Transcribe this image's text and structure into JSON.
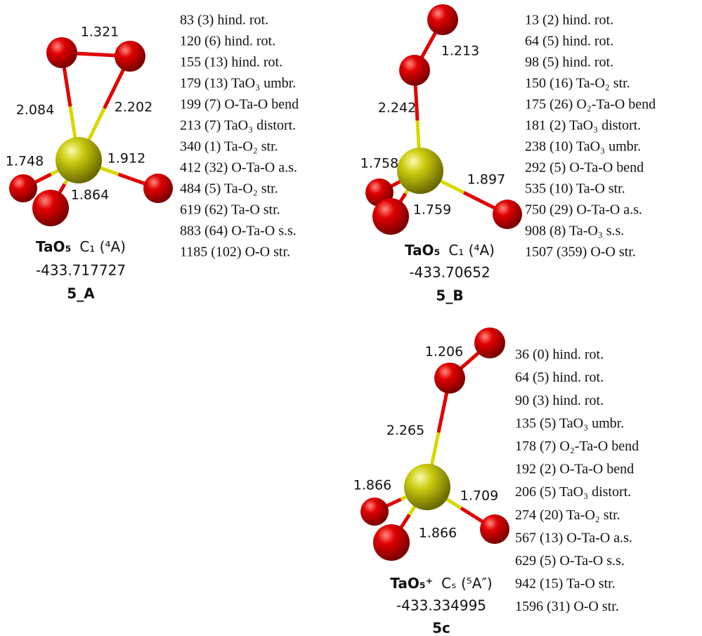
{
  "structures": [
    {
      "id": "5_A",
      "formula": "TaO₅",
      "symmetry": "C₁ (⁴A)",
      "energy": "-433.717727",
      "bonds": [
        "1.321",
        "2.084",
        "2.202",
        "1.748",
        "1.912",
        "1.864"
      ],
      "frequencies": [
        "83 (3) hind. rot.",
        "120 (6) hind. rot.",
        "155 (13) hind. rot.",
        "179 (13) TaO₃ umbr.",
        "199 (7) O-Ta-O bend",
        "213 (7) TaO₃ distort.",
        "340 (1) Ta-O₂ str.",
        "412 (32) O-Ta-O a.s.",
        "484 (5) Ta-O₂ str.",
        "619 (62) Ta-O str.",
        "883 (64) O-Ta-O s.s.",
        "1185 (102) O-O str."
      ]
    },
    {
      "id": "5_B",
      "formula": "TaO₅",
      "symmetry": "C₁ (⁴A)",
      "energy": "-433.70652",
      "bonds": [
        "1.213",
        "2.242",
        "1.758",
        "1.897",
        "1.759"
      ],
      "frequencies": [
        "13 (2) hind. rot.",
        "64 (5) hind. rot.",
        "98 (5) hind. rot.",
        "150 (16) Ta-O₂ str.",
        "175 (26) O₂-Ta-O bend",
        "181 (2) TaO₃ distort.",
        "238 (10) TaO₃ umbr.",
        "292 (5) O-Ta-O bend",
        "535 (10) Ta-O str.",
        "750 (29) O-Ta-O a.s.",
        "908 (8) Ta-O₃ s.s.",
        "1507 (359) O-O str."
      ]
    },
    {
      "id": "5c",
      "formula": "TaO₅⁺",
      "symmetry": "Cₛ (⁵A″)",
      "energy": "-433.334995",
      "bonds": [
        "1.206",
        "2.265",
        "1.866",
        "1.709",
        "1.866"
      ],
      "frequencies": [
        "36 (0) hind. rot.",
        "64 (5) hind. rot.",
        "90 (3) hind. rot.",
        "135 (5) TaO₃ umbr.",
        "178 (7) O₂-Ta-O bend",
        "192 (2) O-Ta-O bend",
        "206 (5) TaO₃ distort.",
        "274 (20) Ta-O₂ str.",
        "567 (13) O-Ta-O a.s.",
        "629 (5) O-Ta-O s.s.",
        "942 (15) Ta-O str.",
        "1596 (31) O-O str."
      ]
    }
  ]
}
